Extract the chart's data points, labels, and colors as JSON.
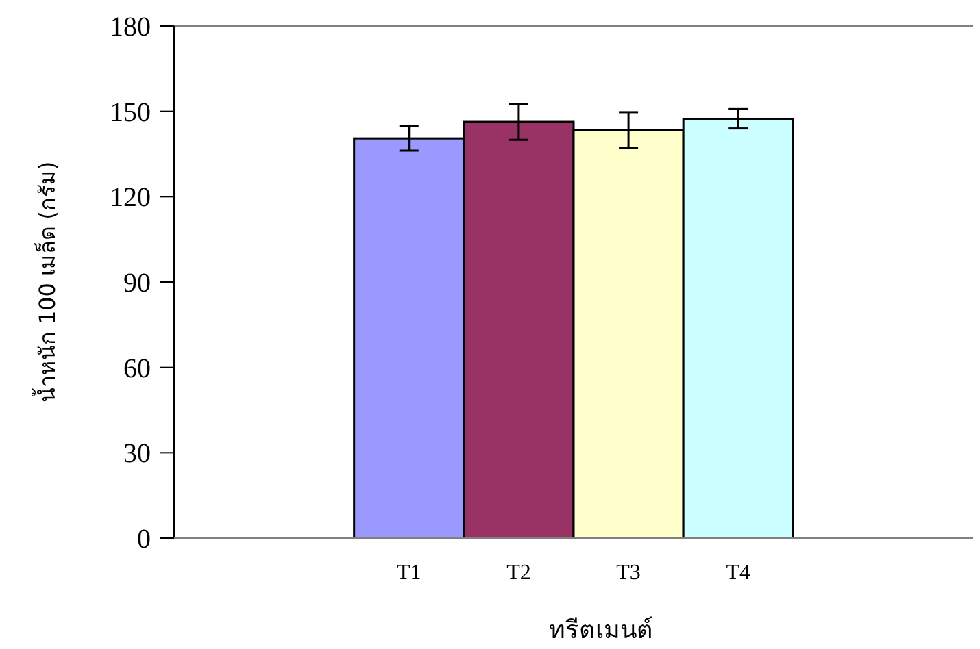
{
  "chart_data": {
    "type": "bar",
    "xlabel": "ทรีตเมนต์",
    "ylabel": "น้ำหนัก 100 เมล็ด (กรัม)",
    "categories": [
      null
    ],
    "series": [
      {
        "name": "T1",
        "color": "#9999ff",
        "values": [
          140.5
        ],
        "errors": [
          4.3
        ]
      },
      {
        "name": "T2",
        "color": "#993366",
        "values": [
          146.3
        ],
        "errors": [
          6.3
        ]
      },
      {
        "name": "T3",
        "color": "#ffffcc",
        "values": [
          143.4
        ],
        "errors": [
          6.3
        ]
      },
      {
        "name": "T4",
        "color": "#ccffff",
        "values": [
          147.4
        ],
        "errors": [
          3.4
        ]
      }
    ],
    "ylim": [
      0,
      180
    ],
    "yticks": [
      0,
      30,
      60,
      90,
      120,
      150,
      180
    ],
    "grid": false,
    "legend": false
  }
}
